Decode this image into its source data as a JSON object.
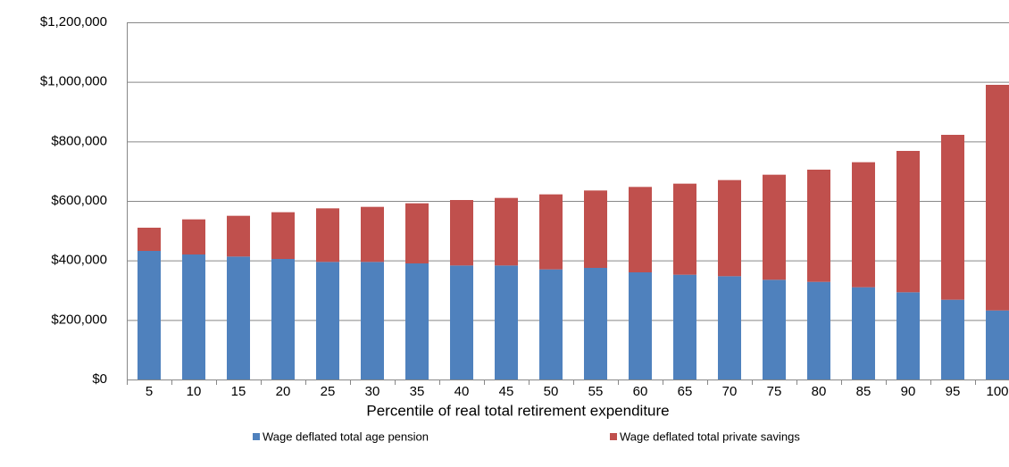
{
  "chart_data": {
    "type": "stacked_bar",
    "x_label": "Percentile of real total retirement expenditure",
    "categories": [
      "5",
      "10",
      "15",
      "20",
      "25",
      "30",
      "35",
      "40",
      "45",
      "50",
      "55",
      "60",
      "65",
      "70",
      "75",
      "80",
      "85",
      "90",
      "95",
      "100"
    ],
    "series": [
      {
        "name": "Wage deflated total age pension",
        "color": "#4f81bd",
        "values": [
          432000,
          420000,
          413000,
          405000,
          395000,
          395000,
          390000,
          383000,
          383000,
          370000,
          375000,
          360000,
          352000,
          347000,
          335000,
          328000,
          310000,
          293000,
          268000,
          232000
        ]
      },
      {
        "name": "Wage deflated total private savings",
        "color": "#c0504d",
        "values": [
          78000,
          118000,
          137000,
          157000,
          180000,
          185000,
          202000,
          220000,
          227000,
          252000,
          260000,
          287000,
          306000,
          323000,
          353000,
          377000,
          420000,
          475000,
          554000,
          758000
        ]
      }
    ],
    "ylim": [
      0,
      1200000
    ],
    "yticks": [
      {
        "value": 0,
        "label": "$0"
      },
      {
        "value": 200000,
        "label": "$200,000"
      },
      {
        "value": 400000,
        "label": "$400,000"
      },
      {
        "value": 600000,
        "label": "$600,000"
      },
      {
        "value": 800000,
        "label": "$800,000"
      },
      {
        "value": 1000000,
        "label": "$1,000,000"
      },
      {
        "value": 1200000,
        "label": "$1,200,000"
      }
    ],
    "grid": true
  }
}
